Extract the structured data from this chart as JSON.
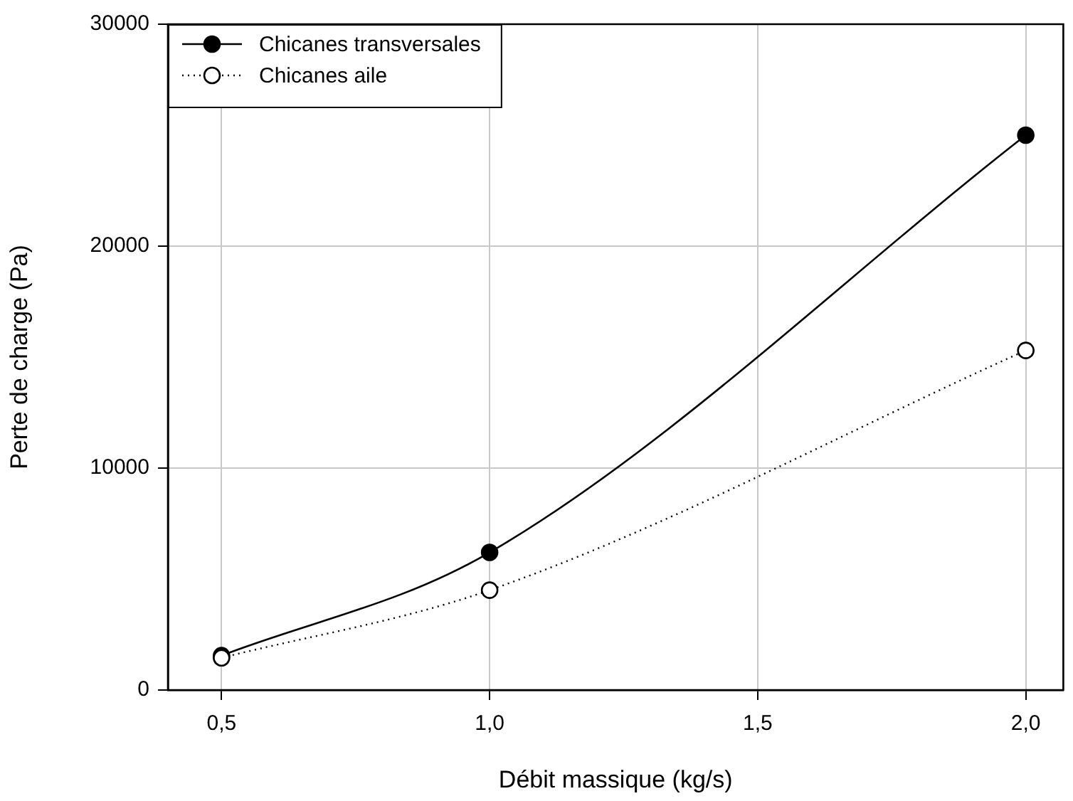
{
  "chart_data": {
    "type": "line",
    "xlabel": "Débit massique (kg/s)",
    "ylabel": "Perte de charge (Pa)",
    "x": [
      0.5,
      1.0,
      2.0
    ],
    "series": [
      {
        "name": "Chicanes transversales",
        "color": "#000000",
        "values": [
          1550,
          6200,
          25000
        ],
        "line_style": "solid"
      },
      {
        "name": "Chicanes aile",
        "color": "#000000",
        "values": [
          1450,
          4500,
          15300
        ],
        "line_style": "dotted"
      }
    ],
    "xlim": [
      0.4,
      2.07
    ],
    "xticks": [
      {
        "value": 0.5,
        "label": "0,5"
      },
      {
        "value": 1.0,
        "label": "1,0"
      },
      {
        "value": 1.5,
        "label": "1,5"
      },
      {
        "value": 2.0,
        "label": "2,0"
      }
    ],
    "ylim": [
      0,
      30000
    ],
    "yticks": [
      0,
      10000,
      20000,
      30000
    ],
    "grid": true,
    "legend": "top left",
    "marker": "circle"
  }
}
